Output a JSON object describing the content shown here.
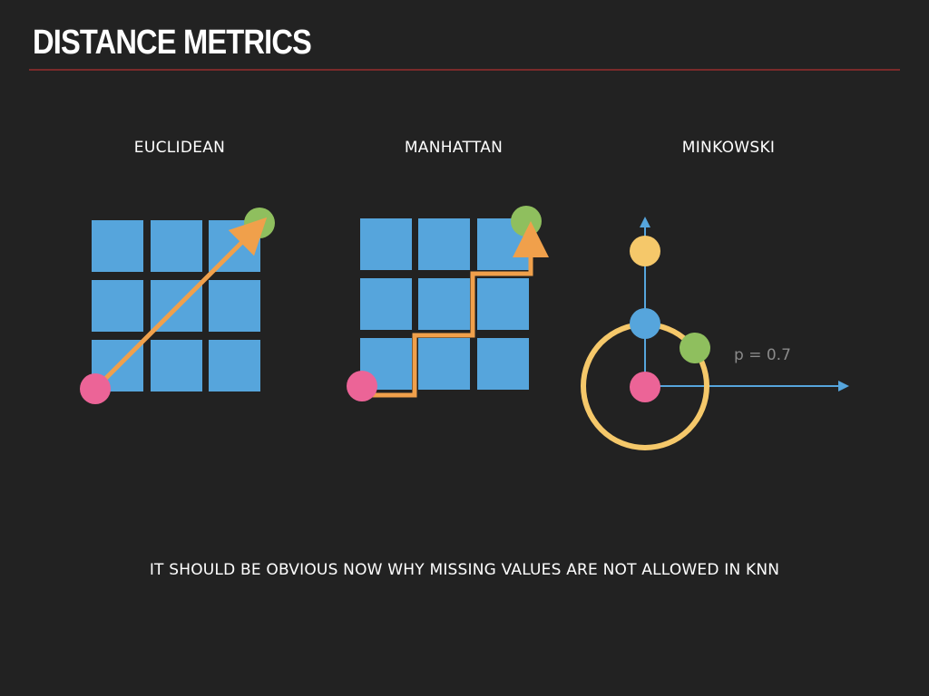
{
  "slide": {
    "title": "DISTANCE METRICS",
    "footer": "IT SHOULD BE OBVIOUS NOW WHY MISSING VALUES ARE NOT ALLOWED IN KNN"
  },
  "panels": {
    "euclidean": {
      "label": "EUCLIDEAN"
    },
    "manhattan": {
      "label": "MANHATTAN"
    },
    "minkowski": {
      "label": "MINKOWSKI",
      "annotation": "p = 0.7"
    }
  },
  "colors": {
    "background": "#222222",
    "title_rule": "#7a2a2a",
    "grid_cell": "#56a5dc",
    "path": "#f0a04b",
    "start_point": "#ec6497",
    "end_point": "#8fbf5e",
    "axis": "#56a5dc",
    "circle": "#f5c86a",
    "upper_point": "#f5c86a",
    "annotation_text": "#8a8a8a"
  }
}
